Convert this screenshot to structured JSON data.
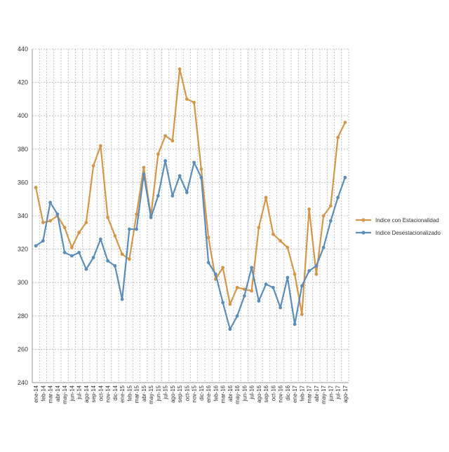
{
  "colors": {
    "estacionalidad": "#D4974A",
    "desestacionalizado": "#5B8DB8",
    "grid": "#B5B5B5",
    "axis_text": "#333333"
  },
  "chart_data": {
    "type": "line",
    "title": "",
    "xlabel": "",
    "ylabel": "",
    "ylim": [
      240,
      440
    ],
    "y_ticks": [
      240,
      260,
      280,
      300,
      320,
      340,
      360,
      380,
      400,
      420,
      440
    ],
    "grid": true,
    "legend_position": "right",
    "categories": [
      "ene-14",
      "feb-14",
      "mar-14",
      "abr-14",
      "may-14",
      "jun-14",
      "jul-14",
      "ago-14",
      "sep-14",
      "oct-14",
      "nov-14",
      "dic-14",
      "ene-15",
      "feb-15",
      "mar-15",
      "abr-15",
      "may-15",
      "jun-15",
      "jul-15",
      "ago-15",
      "sep-15",
      "oct-15",
      "nov-15",
      "dic-15",
      "ene-16",
      "feb-16",
      "mar-16",
      "abr-16",
      "may-16",
      "jun-16",
      "jul-16",
      "ago-16",
      "sep-16",
      "oct-16",
      "nov-16",
      "dic-16",
      "ene-17",
      "feb-17",
      "mar-17",
      "abr-17",
      "may-17",
      "jun-17",
      "jul-17",
      "ago-17"
    ],
    "series": [
      {
        "name": "Indice con Estacionalidad",
        "color_key": "estacionalidad",
        "values": [
          357,
          336,
          337,
          340,
          333,
          321,
          330,
          336,
          370,
          382,
          339,
          328,
          317,
          314,
          341,
          369,
          340,
          377,
          388,
          385,
          428,
          410,
          408,
          368,
          327,
          302,
          309,
          287,
          297,
          296,
          295,
          333,
          351,
          329,
          325,
          321,
          305,
          281,
          344,
          305,
          340,
          346,
          387,
          396
        ]
      },
      {
        "name": "Indice Desestacionalizado",
        "color_key": "desestacionalizado",
        "values": [
          322,
          325,
          348,
          341,
          318,
          316,
          318,
          308,
          315,
          326,
          313,
          310,
          290,
          332,
          332,
          365,
          339,
          352,
          373,
          352,
          364,
          354,
          372,
          363,
          312,
          305,
          288,
          272,
          280,
          292,
          309,
          289,
          299,
          297,
          285,
          303,
          275,
          298,
          307,
          310,
          321,
          337,
          351,
          363
        ]
      }
    ]
  }
}
